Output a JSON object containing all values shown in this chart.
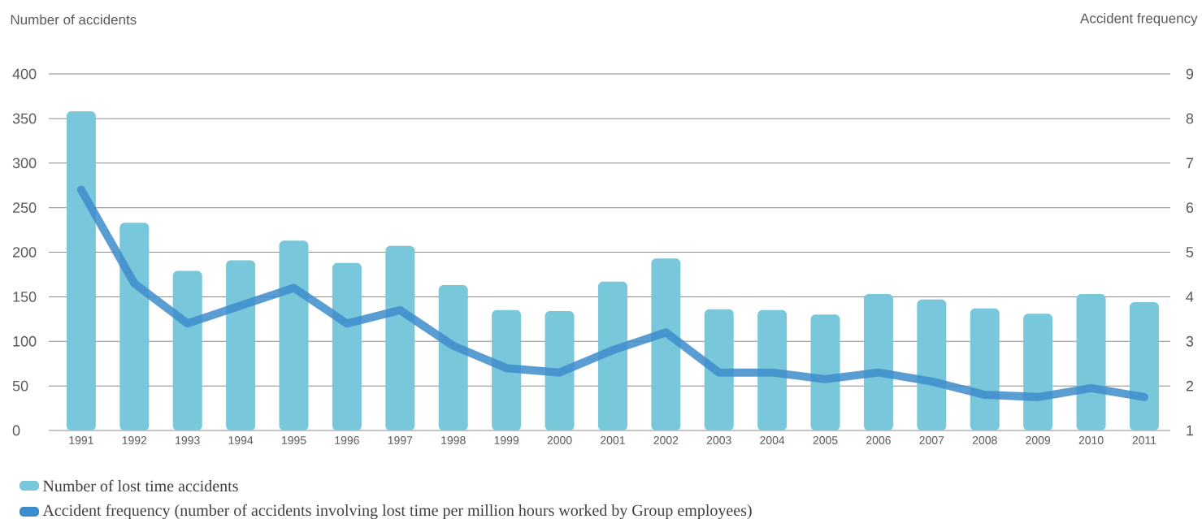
{
  "chart_data": {
    "type": "bar",
    "ylabel": "Number of accidents",
    "y2label": "Accident frequency",
    "categories": [
      "1991",
      "1992",
      "1993",
      "1994",
      "1995",
      "1996",
      "1997",
      "1998",
      "1999",
      "2000",
      "2001",
      "2002",
      "2003",
      "2004",
      "2005",
      "2006",
      "2007",
      "2008",
      "2009",
      "2010",
      "2011"
    ],
    "series": [
      {
        "name": "Number of lost time accidents",
        "color": "#79c7da",
        "values": [
          358,
          233,
          179,
          191,
          213,
          188,
          207,
          163,
          135,
          134,
          167,
          193,
          136,
          135,
          130,
          153,
          147,
          137,
          131,
          153,
          144
        ]
      },
      {
        "name": "Accident frequency (number of accidents involving lost time per million hours worked by Group employees)",
        "type": "line",
        "axis": "y2",
        "color": "#3d8ccb",
        "values": [
          6.4,
          4.3,
          3.4,
          3.8,
          4.2,
          3.4,
          3.7,
          2.9,
          2.4,
          2.3,
          2.8,
          3.2,
          2.3,
          2.3,
          2.15,
          2.3,
          2.1,
          1.8,
          1.75,
          1.95,
          1.75
        ]
      }
    ],
    "ylim": [
      0,
      400
    ],
    "yticks": [
      0,
      50,
      100,
      150,
      200,
      250,
      300,
      350,
      400
    ],
    "y2lim": [
      1,
      9
    ],
    "y2ticks": [
      1,
      2,
      3,
      4,
      5,
      6,
      7,
      8,
      9
    ],
    "grid": "y",
    "legend": "bottom left"
  }
}
